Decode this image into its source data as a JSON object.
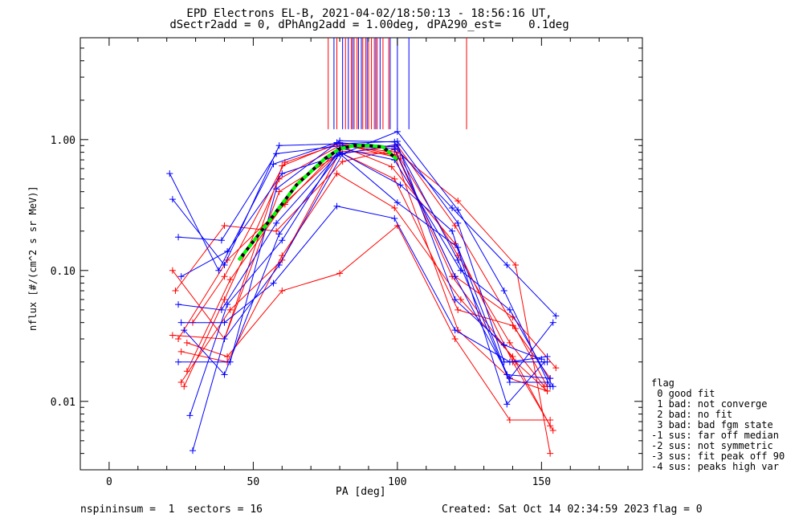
{
  "title_line1": "EPD Electrons EL-B, 2021-04-02/18:50:13 - 18:56:16 UT,",
  "title_line2": "dSectr2add = 0, dPhAng2add = 1.00deg, dPA290_est=    0.1deg",
  "footer": {
    "nspin": "nspininsum =  1  sectors = 16",
    "created": "Created: Sat Oct 14 02:34:59 2023",
    "flag": "flag = 0"
  },
  "legend": {
    "title": "flag",
    "items": [
      " 0 good fit",
      " 1 bad: not converge",
      " 2 bad: no fit",
      " 3 bad: bad fgm state",
      "-1 sus: far off median",
      "-2 sus: not symmetric",
      "-3 sus: fit peak off 90",
      "-4 sus: peaks high var"
    ]
  },
  "colors": {
    "red": "#ff0000",
    "blue": "#0000ff",
    "fit_green": "#00ff00",
    "fit_black": "#000000"
  },
  "chart_data": {
    "type": "line",
    "xlabel": "PA [deg]",
    "ylabel": "nflux [#/(cm^2 s sr MeV)]",
    "xlim": [
      -10,
      185
    ],
    "ylim": [
      0.003,
      6.0
    ],
    "yscale": "log",
    "xticks": [
      0,
      50,
      100,
      150
    ],
    "xtick_labels": [
      "0",
      "50",
      "100",
      "150"
    ],
    "yticks": [
      0.01,
      0.1,
      1.0
    ],
    "ytick_labels": [
      "0.01",
      "0.10",
      "1.00"
    ],
    "vertical_markers": {
      "red": [
        76,
        79,
        82,
        84,
        85,
        86,
        88,
        89,
        90,
        91,
        92,
        93,
        95,
        97,
        124
      ],
      "blue": [
        78,
        81,
        83,
        84.5,
        86.5,
        87.5,
        89.5,
        92.5,
        94,
        97.5,
        100,
        104
      ]
    },
    "series_red": [
      [
        [
          22,
          0.1
        ],
        [
          40,
          0.03
        ],
        [
          60,
          0.63
        ],
        [
          80,
          0.95
        ],
        [
          100,
          0.75
        ],
        [
          120,
          0.09
        ],
        [
          140,
          0.044
        ],
        [
          155,
          0.018
        ]
      ],
      [
        [
          24,
          0.03
        ],
        [
          41,
          0.12
        ],
        [
          61,
          0.32
        ],
        [
          79,
          0.82
        ],
        [
          99,
          0.77
        ],
        [
          121,
          0.035
        ],
        [
          139,
          0.015
        ],
        [
          152,
          0.012
        ]
      ],
      [
        [
          25,
          0.014
        ],
        [
          42,
          0.05
        ],
        [
          60,
          0.12
        ],
        [
          81,
          0.88
        ],
        [
          98,
          0.62
        ],
        [
          120,
          0.16
        ],
        [
          140,
          0.02
        ],
        [
          154,
          0.006
        ]
      ],
      [
        [
          26,
          0.013
        ],
        [
          40,
          0.06
        ],
        [
          59,
          0.5
        ],
        [
          80,
          0.9
        ],
        [
          100,
          0.8
        ],
        [
          121,
          0.34
        ],
        [
          141,
          0.11
        ],
        [
          153,
          0.004
        ]
      ],
      [
        [
          27,
          0.028
        ],
        [
          41,
          0.022
        ],
        [
          60,
          0.07
        ],
        [
          80,
          0.095
        ],
        [
          100,
          0.22
        ],
        [
          120,
          0.03
        ],
        [
          139,
          0.0072
        ],
        [
          153,
          0.0072
        ]
      ],
      [
        [
          23,
          0.07
        ],
        [
          40,
          0.22
        ],
        [
          58,
          0.2
        ],
        [
          81,
          0.68
        ],
        [
          99,
          0.84
        ],
        [
          119,
          0.09
        ],
        [
          141,
          0.02
        ],
        [
          152,
          0.012
        ]
      ],
      [
        [
          29,
          0.04
        ],
        [
          40,
          0.09
        ],
        [
          61,
          0.67
        ],
        [
          80,
          0.93
        ],
        [
          101,
          0.72
        ],
        [
          121,
          0.13
        ],
        [
          139,
          0.028
        ],
        [
          151,
          0.013
        ]
      ],
      [
        [
          25,
          0.024
        ],
        [
          41,
          0.02
        ],
        [
          60,
          0.13
        ],
        [
          79,
          0.55
        ],
        [
          99,
          0.3
        ],
        [
          122,
          0.06
        ],
        [
          140,
          0.022
        ],
        [
          153,
          0.0065
        ]
      ],
      [
        [
          22,
          0.032
        ],
        [
          40,
          0.03
        ],
        [
          59,
          0.4
        ],
        [
          80,
          0.78
        ],
        [
          100,
          0.9
        ],
        [
          120,
          0.22
        ],
        [
          141,
          0.036
        ],
        [
          152,
          0.013
        ]
      ],
      [
        [
          27,
          0.017
        ],
        [
          42,
          0.085
        ],
        [
          61,
          0.33
        ],
        [
          80,
          0.8
        ],
        [
          99,
          0.5
        ],
        [
          121,
          0.05
        ],
        [
          140,
          0.038
        ],
        [
          153,
          0.015
        ]
      ]
    ],
    "series_blue": [
      [
        [
          21,
          0.55
        ],
        [
          38,
          0.1
        ],
        [
          57,
          0.65
        ],
        [
          79,
          0.95
        ],
        [
          99,
          0.88
        ],
        [
          119,
          0.3
        ],
        [
          138,
          0.11
        ],
        [
          155,
          0.045
        ]
      ],
      [
        [
          22,
          0.35
        ],
        [
          40,
          0.11
        ],
        [
          59,
          0.9
        ],
        [
          80,
          0.93
        ],
        [
          100,
          0.97
        ],
        [
          121,
          0.23
        ],
        [
          137,
          0.02
        ],
        [
          152,
          0.02
        ]
      ],
      [
        [
          24,
          0.18
        ],
        [
          39,
          0.17
        ],
        [
          58,
          0.78
        ],
        [
          81,
          0.9
        ],
        [
          99,
          0.85
        ],
        [
          120,
          0.09
        ],
        [
          139,
          0.015
        ],
        [
          154,
          0.04
        ]
      ],
      [
        [
          25,
          0.09
        ],
        [
          41,
          0.14
        ],
        [
          60,
          0.55
        ],
        [
          79,
          0.75
        ],
        [
          100,
          1.15
        ],
        [
          121,
          0.29
        ],
        [
          137,
          0.07
        ],
        [
          153,
          0.013
        ]
      ],
      [
        [
          24,
          0.055
        ],
        [
          39,
          0.05
        ],
        [
          58,
          0.23
        ],
        [
          80,
          0.8
        ],
        [
          101,
          0.45
        ],
        [
          119,
          0.2
        ],
        [
          138,
          0.0095
        ],
        [
          151,
          0.02
        ]
      ],
      [
        [
          25,
          0.04
        ],
        [
          40,
          0.04
        ],
        [
          57,
          0.08
        ],
        [
          79,
          0.31
        ],
        [
          99,
          0.25
        ],
        [
          120,
          0.035
        ],
        [
          139,
          0.02
        ],
        [
          152,
          0.022
        ]
      ],
      [
        [
          26,
          0.035
        ],
        [
          40,
          0.016
        ],
        [
          59,
          0.19
        ],
        [
          80,
          0.78
        ],
        [
          100,
          0.33
        ],
        [
          121,
          0.15
        ],
        [
          138,
          0.016
        ],
        [
          153,
          0.015
        ]
      ],
      [
        [
          28,
          0.0078
        ],
        [
          41,
          0.055
        ],
        [
          60,
          0.17
        ],
        [
          80,
          0.86
        ],
        [
          99,
          0.7
        ],
        [
          122,
          0.1
        ],
        [
          139,
          0.05
        ],
        [
          154,
          0.013
        ]
      ],
      [
        [
          29,
          0.0042
        ],
        [
          40,
          0.03
        ],
        [
          59,
          0.11
        ],
        [
          81,
          0.78
        ],
        [
          100,
          0.92
        ],
        [
          120,
          0.06
        ],
        [
          137,
          0.027
        ],
        [
          150,
          0.021
        ]
      ],
      [
        [
          24,
          0.02
        ],
        [
          42,
          0.02
        ],
        [
          58,
          0.42
        ],
        [
          80,
          0.98
        ],
        [
          99,
          0.96
        ],
        [
          121,
          0.12
        ],
        [
          139,
          0.014
        ],
        [
          152,
          0.014
        ]
      ]
    ],
    "fit_curve": [
      [
        45,
        0.12
      ],
      [
        55,
        0.23
      ],
      [
        65,
        0.45
      ],
      [
        75,
        0.72
      ],
      [
        80,
        0.85
      ],
      [
        85,
        0.9
      ],
      [
        90,
        0.9
      ],
      [
        95,
        0.88
      ],
      [
        100,
        0.7
      ]
    ]
  }
}
